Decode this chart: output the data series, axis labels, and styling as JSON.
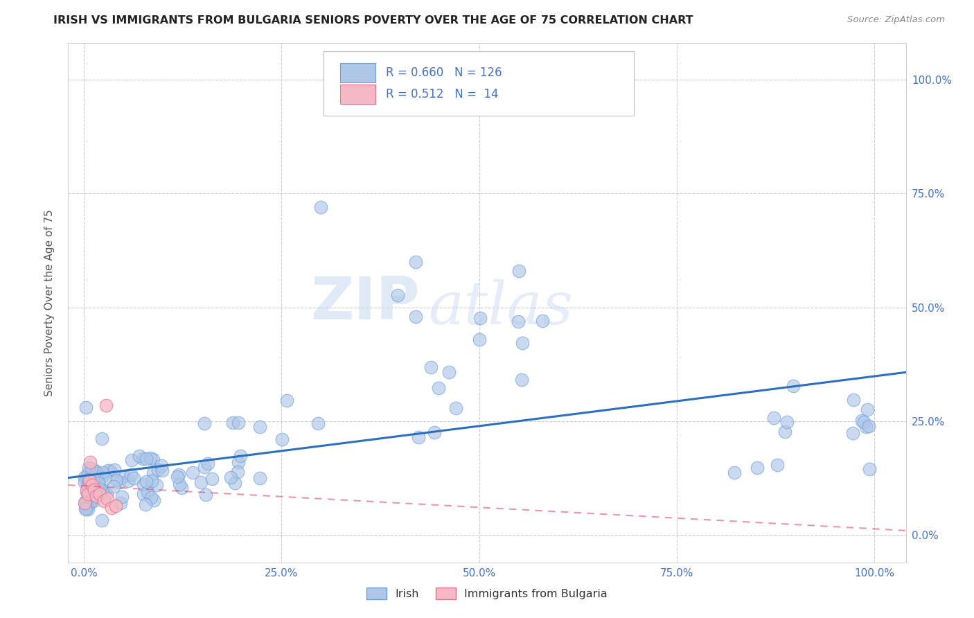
{
  "title": "IRISH VS IMMIGRANTS FROM BULGARIA SENIORS POVERTY OVER THE AGE OF 75 CORRELATION CHART",
  "source": "Source: ZipAtlas.com",
  "ylabel": "Seniors Poverty Over the Age of 75",
  "watermark_zip": "ZIP",
  "watermark_atlas": "atlas",
  "irish_R": 0.66,
  "irish_N": 126,
  "bulgaria_R": 0.512,
  "bulgaria_N": 14,
  "irish_color": "#aec6e8",
  "irish_edge": "#6a9fd8",
  "bulgaria_color": "#f5b8c4",
  "bulgaria_edge": "#e87090",
  "irish_line_color": "#2c6fbe",
  "bulgaria_line_color": "#d94060",
  "legend_irish": "Irish",
  "legend_bulgaria": "Immigrants from Bulgaria",
  "tick_color": "#4472c4",
  "ylabel_color": "#555555",
  "title_color": "#222222",
  "source_color": "#888888",
  "grid_color": "#cccccc",
  "legend_box_color": "#aaaaaa",
  "watermark_color": "#c8d8f0"
}
